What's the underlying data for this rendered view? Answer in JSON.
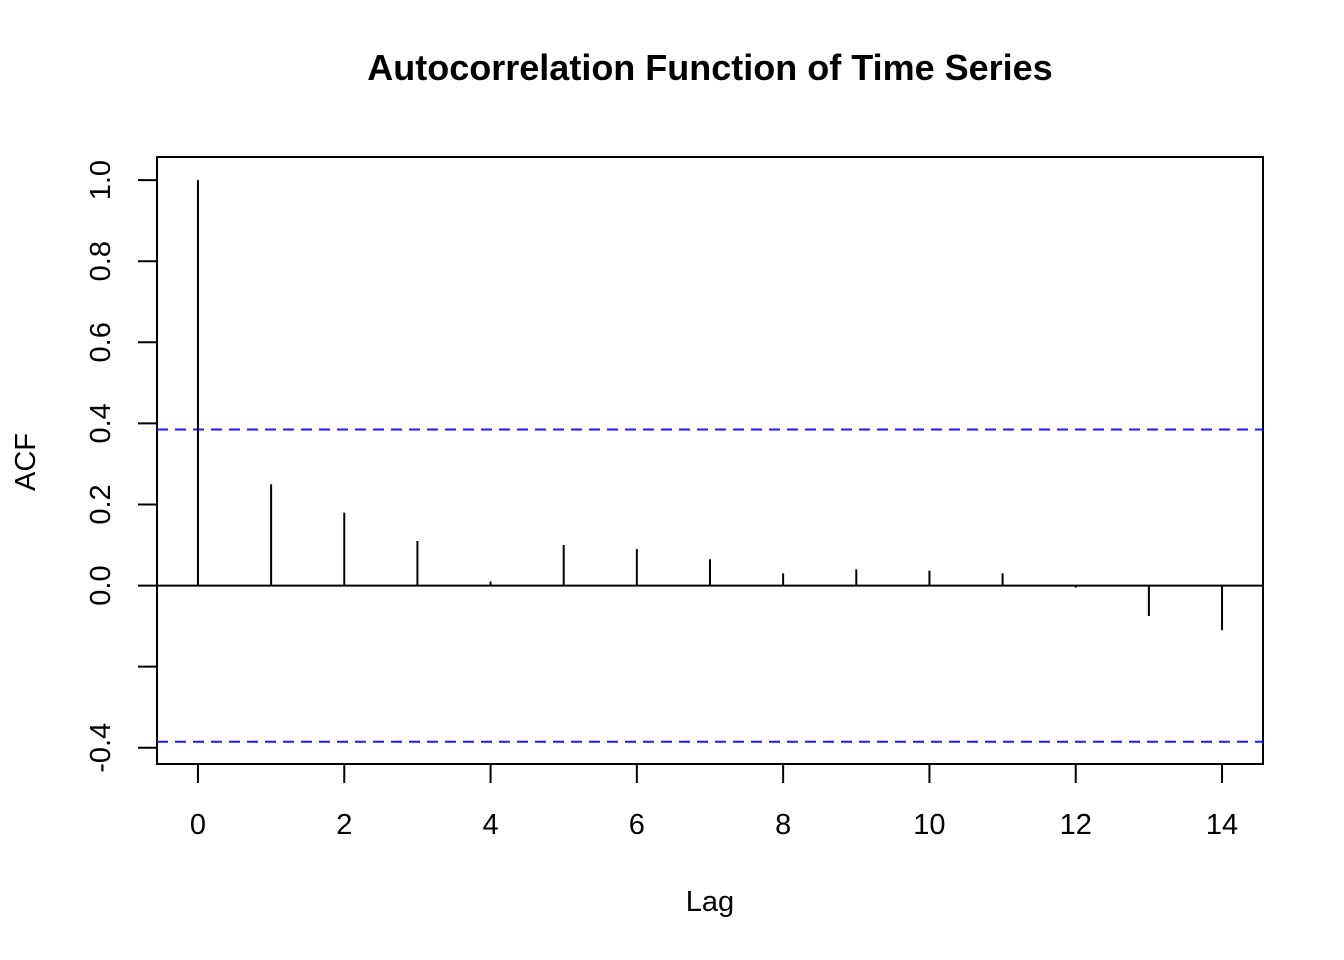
{
  "chart_data": {
    "type": "bar",
    "title": "Autocorrelation Function of Time Series",
    "xlabel": "Lag",
    "ylabel": "ACF",
    "x": [
      0,
      1,
      2,
      3,
      4,
      5,
      6,
      7,
      8,
      9,
      10,
      11,
      12,
      13,
      14
    ],
    "values": [
      1.0,
      0.25,
      0.18,
      0.11,
      0.01,
      0.1,
      0.09,
      0.065,
      0.03,
      0.04,
      0.037,
      0.03,
      -0.005,
      -0.075,
      -0.11
    ],
    "xlim": [
      -0.56,
      14.56
    ],
    "ylim": [
      -0.44,
      1.057
    ],
    "xticks": [
      0,
      2,
      4,
      6,
      8,
      10,
      12,
      14
    ],
    "xtick_labels": [
      "0",
      "2",
      "4",
      "6",
      "8",
      "10",
      "12",
      "14"
    ],
    "yticks": [
      -0.4,
      -0.2,
      0.0,
      0.2,
      0.4,
      0.6,
      0.8,
      1.0
    ],
    "ytick_labels": [
      "-0.4",
      "",
      "0.0",
      "0.2",
      "0.4",
      "0.6",
      "0.8",
      "1.0"
    ],
    "confidence_bounds": [
      0.385,
      -0.385
    ],
    "confidence_line_color": "#1a1aff",
    "spike_color": "#000000",
    "grid": false,
    "legend": "none"
  }
}
